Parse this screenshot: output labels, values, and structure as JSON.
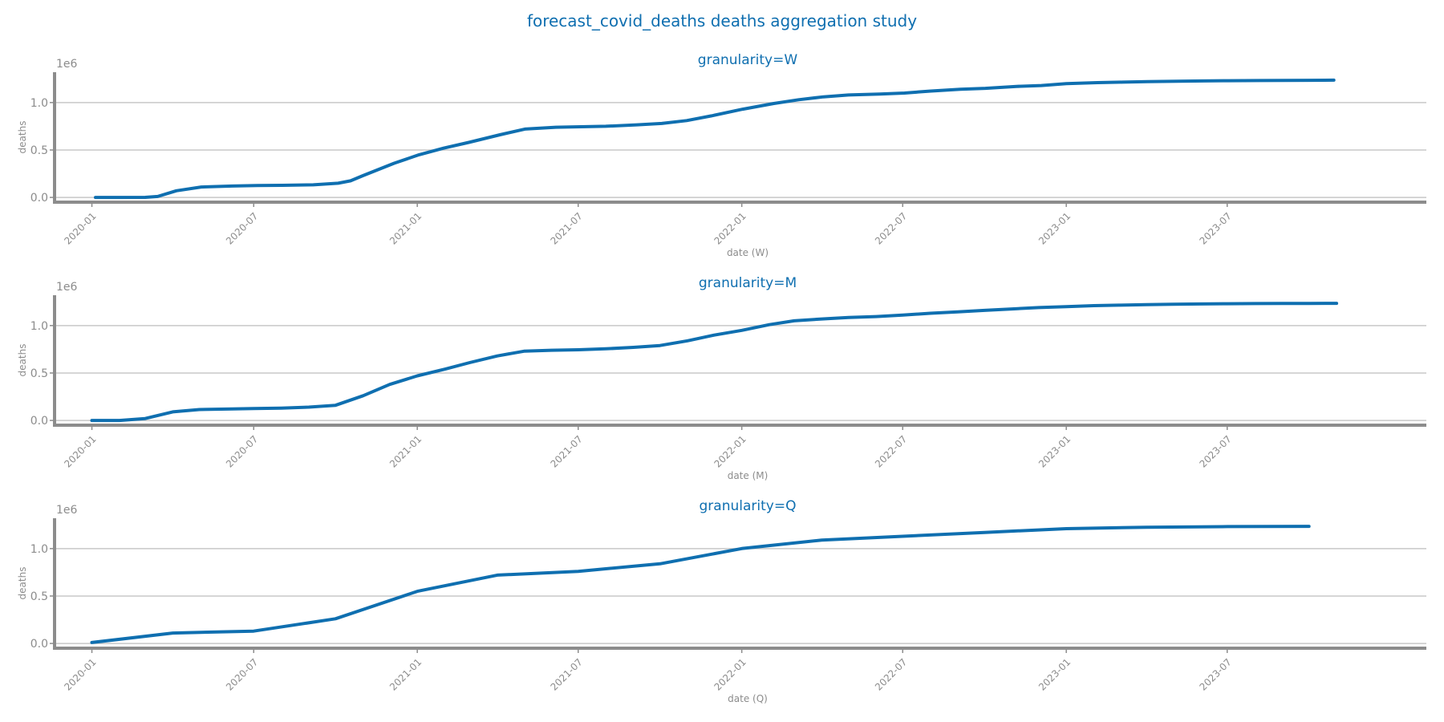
{
  "suptitle": "forecast_covid_deaths deaths aggregation study",
  "colors": {
    "line": "#0f6fb0",
    "title": "#0f6fb0",
    "axis": "#8c8c8c",
    "grid": "#c8c8c8",
    "text": "#8c8c8c"
  },
  "chart_data": [
    {
      "type": "line",
      "title": "granularity=W",
      "xlabel": "date (W)",
      "ylabel": "deaths",
      "y_offset_label": "1e6",
      "ylim": [
        -0.05,
        1.32
      ],
      "xlim": [
        "2019-11-20",
        "2024-02-10"
      ],
      "grid": "horizontal",
      "x_ticks": [
        "2020-01",
        "2020-07",
        "2021-01",
        "2021-07",
        "2022-01",
        "2022-07",
        "2023-01",
        "2023-07"
      ],
      "y_ticks": [
        "0.0",
        "0.5",
        "1.0"
      ],
      "series": [
        {
          "x": [
            "2020-01-05",
            "2020-02-02",
            "2020-03-01",
            "2020-03-15",
            "2020-04-05",
            "2020-05-03",
            "2020-06-07",
            "2020-07-05",
            "2020-08-02",
            "2020-09-06",
            "2020-10-04",
            "2020-10-18",
            "2020-11-01",
            "2020-12-06",
            "2021-01-03",
            "2021-01-31",
            "2021-02-28",
            "2021-04-04",
            "2021-05-02",
            "2021-06-06",
            "2021-07-04",
            "2021-08-01",
            "2021-09-05",
            "2021-10-03",
            "2021-10-31",
            "2021-11-28",
            "2022-01-02",
            "2022-02-06",
            "2022-03-06",
            "2022-04-03",
            "2022-05-01",
            "2022-06-05",
            "2022-07-03",
            "2022-07-31",
            "2022-09-04",
            "2022-10-02",
            "2022-11-06",
            "2022-12-04",
            "2023-01-01",
            "2023-02-05",
            "2023-03-05",
            "2023-04-02",
            "2023-05-07",
            "2023-06-04",
            "2023-07-02",
            "2023-08-06",
            "2023-09-03",
            "2023-10-01",
            "2023-10-29"
          ],
          "y": [
            0.0,
            0.0,
            0.001,
            0.01,
            0.07,
            0.11,
            0.12,
            0.125,
            0.128,
            0.133,
            0.15,
            0.175,
            0.23,
            0.36,
            0.45,
            0.52,
            0.58,
            0.66,
            0.72,
            0.74,
            0.745,
            0.75,
            0.765,
            0.78,
            0.81,
            0.86,
            0.93,
            0.99,
            1.03,
            1.06,
            1.08,
            1.09,
            1.1,
            1.12,
            1.14,
            1.15,
            1.17,
            1.18,
            1.2,
            1.21,
            1.215,
            1.22,
            1.225,
            1.228,
            1.23,
            1.232,
            1.233,
            1.235,
            1.236
          ]
        }
      ]
    },
    {
      "type": "line",
      "title": "granularity=M",
      "xlabel": "date (M)",
      "ylabel": "deaths",
      "y_offset_label": "1e6",
      "ylim": [
        -0.05,
        1.32
      ],
      "xlim": [
        "2019-11-20",
        "2024-02-10"
      ],
      "grid": "horizontal",
      "x_ticks": [
        "2020-01",
        "2020-07",
        "2021-01",
        "2021-07",
        "2022-01",
        "2022-07",
        "2023-01",
        "2023-07"
      ],
      "y_ticks": [
        "0.0",
        "0.5",
        "1.0"
      ],
      "series": [
        {
          "x": [
            "2020-01-01",
            "2020-02-01",
            "2020-03-01",
            "2020-04-01",
            "2020-05-01",
            "2020-06-01",
            "2020-07-01",
            "2020-08-01",
            "2020-09-01",
            "2020-10-01",
            "2020-11-01",
            "2020-12-01",
            "2021-01-01",
            "2021-02-01",
            "2021-03-01",
            "2021-04-01",
            "2021-05-01",
            "2021-06-01",
            "2021-07-01",
            "2021-08-01",
            "2021-09-01",
            "2021-10-01",
            "2021-11-01",
            "2021-12-01",
            "2022-01-01",
            "2022-02-01",
            "2022-03-01",
            "2022-04-01",
            "2022-05-01",
            "2022-06-01",
            "2022-07-01",
            "2022-08-01",
            "2022-09-01",
            "2022-10-01",
            "2022-11-01",
            "2022-12-01",
            "2023-01-01",
            "2023-02-01",
            "2023-03-01",
            "2023-04-01",
            "2023-05-01",
            "2023-06-01",
            "2023-07-01",
            "2023-08-01",
            "2023-09-01",
            "2023-10-01",
            "2023-11-01"
          ],
          "y": [
            0.0,
            0.0,
            0.02,
            0.09,
            0.115,
            0.12,
            0.125,
            0.13,
            0.14,
            0.16,
            0.26,
            0.38,
            0.47,
            0.54,
            0.61,
            0.68,
            0.73,
            0.74,
            0.745,
            0.755,
            0.77,
            0.79,
            0.84,
            0.9,
            0.95,
            1.01,
            1.05,
            1.07,
            1.085,
            1.095,
            1.11,
            1.13,
            1.145,
            1.16,
            1.175,
            1.19,
            1.2,
            1.21,
            1.215,
            1.22,
            1.225,
            1.228,
            1.23,
            1.232,
            1.233,
            1.234,
            1.235
          ]
        }
      ]
    },
    {
      "type": "line",
      "title": "granularity=Q",
      "xlabel": "date (Q)",
      "ylabel": "deaths",
      "y_offset_label": "1e6",
      "ylim": [
        -0.05,
        1.32
      ],
      "xlim": [
        "2019-11-20",
        "2024-02-10"
      ],
      "grid": "horizontal",
      "x_ticks": [
        "2020-01",
        "2020-07",
        "2021-01",
        "2021-07",
        "2022-01",
        "2022-07",
        "2023-01",
        "2023-07"
      ],
      "y_ticks": [
        "0.0",
        "0.5",
        "1.0"
      ],
      "series": [
        {
          "x": [
            "2020-01-01",
            "2020-04-01",
            "2020-07-01",
            "2020-10-01",
            "2021-01-01",
            "2021-04-01",
            "2021-07-01",
            "2021-10-01",
            "2022-01-01",
            "2022-04-01",
            "2022-07-01",
            "2022-10-01",
            "2023-01-01",
            "2023-04-01",
            "2023-07-01",
            "2023-10-01"
          ],
          "y": [
            0.01,
            0.11,
            0.13,
            0.26,
            0.55,
            0.72,
            0.76,
            0.84,
            1.0,
            1.09,
            1.13,
            1.17,
            1.21,
            1.225,
            1.232,
            1.235
          ]
        }
      ]
    }
  ]
}
